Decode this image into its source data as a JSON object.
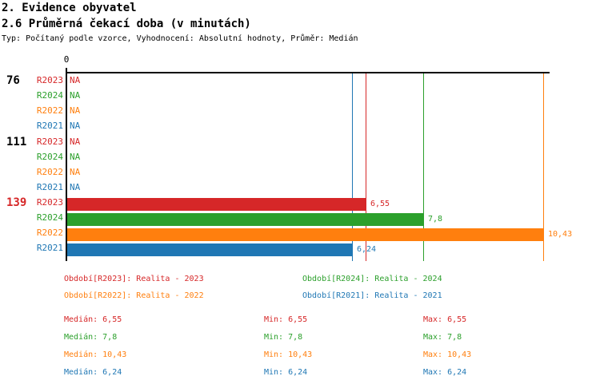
{
  "header": {
    "title_line1": "2. Evidence obyvatel",
    "title_line2": "2.6 Průměrná čekací doba (v minutách)",
    "subtitle": "Typ: Počítaný podle vzorce, Vyhodnocení: Absolutní hodnoty, Průměr: Medián"
  },
  "chart_data": {
    "type": "bar",
    "orientation": "horizontal",
    "value_axis": {
      "label": "0",
      "min": 0,
      "max": 10.55,
      "position": "top"
    },
    "series_colors": {
      "R2023": "#d62728",
      "R2024": "#2ca02c",
      "R2022": "#ff7f0e",
      "R2021": "#1f77b4"
    },
    "groups": [
      {
        "label": "76",
        "label_color": "#000000",
        "rows": [
          {
            "series": "R2023",
            "value": null,
            "display": "NA"
          },
          {
            "series": "R2024",
            "value": null,
            "display": "NA"
          },
          {
            "series": "R2022",
            "value": null,
            "display": "NA"
          },
          {
            "series": "R2021",
            "value": null,
            "display": "NA"
          }
        ]
      },
      {
        "label": "111",
        "label_color": "#000000",
        "rows": [
          {
            "series": "R2023",
            "value": null,
            "display": "NA"
          },
          {
            "series": "R2024",
            "value": null,
            "display": "NA"
          },
          {
            "series": "R2022",
            "value": null,
            "display": "NA"
          },
          {
            "series": "R2021",
            "value": null,
            "display": "NA"
          }
        ]
      },
      {
        "label": "139",
        "label_color": "#d62728",
        "rows": [
          {
            "series": "R2023",
            "value": 6.55,
            "display": "6,55"
          },
          {
            "series": "R2024",
            "value": 7.8,
            "display": "7,8"
          },
          {
            "series": "R2022",
            "value": 10.43,
            "display": "10,43"
          },
          {
            "series": "R2021",
            "value": 6.24,
            "display": "6,24"
          }
        ]
      }
    ],
    "reference_lines": [
      {
        "series": "R2021",
        "value": 6.24
      },
      {
        "series": "R2023",
        "value": 6.55
      },
      {
        "series": "R2024",
        "value": 7.8
      },
      {
        "series": "R2022",
        "value": 10.43
      }
    ]
  },
  "legend": {
    "columns": [
      [
        {
          "text": "Období[R2023]: Realita - 2023",
          "series": "R2023"
        },
        {
          "text": "Období[R2022]: Realita - 2022",
          "series": "R2022"
        }
      ],
      [
        {
          "text": "Období[R2024]: Realita - 2024",
          "series": "R2024"
        },
        {
          "text": "Období[R2021]: Realita - 2021",
          "series": "R2021"
        }
      ]
    ]
  },
  "stats": {
    "rows": [
      {
        "series": "R2023",
        "median": "Medián: 6,55",
        "min": "Min: 6,55",
        "max": "Max: 6,55"
      },
      {
        "series": "R2024",
        "median": "Medián: 7,8",
        "min": "Min: 7,8",
        "max": "Max: 7,8"
      },
      {
        "series": "R2022",
        "median": "Medián: 10,43",
        "min": "Min: 10,43",
        "max": "Max: 10,43"
      },
      {
        "series": "R2021",
        "median": "Medián: 6,24",
        "min": "Min: 6,24",
        "max": "Max: 6,24"
      }
    ]
  }
}
